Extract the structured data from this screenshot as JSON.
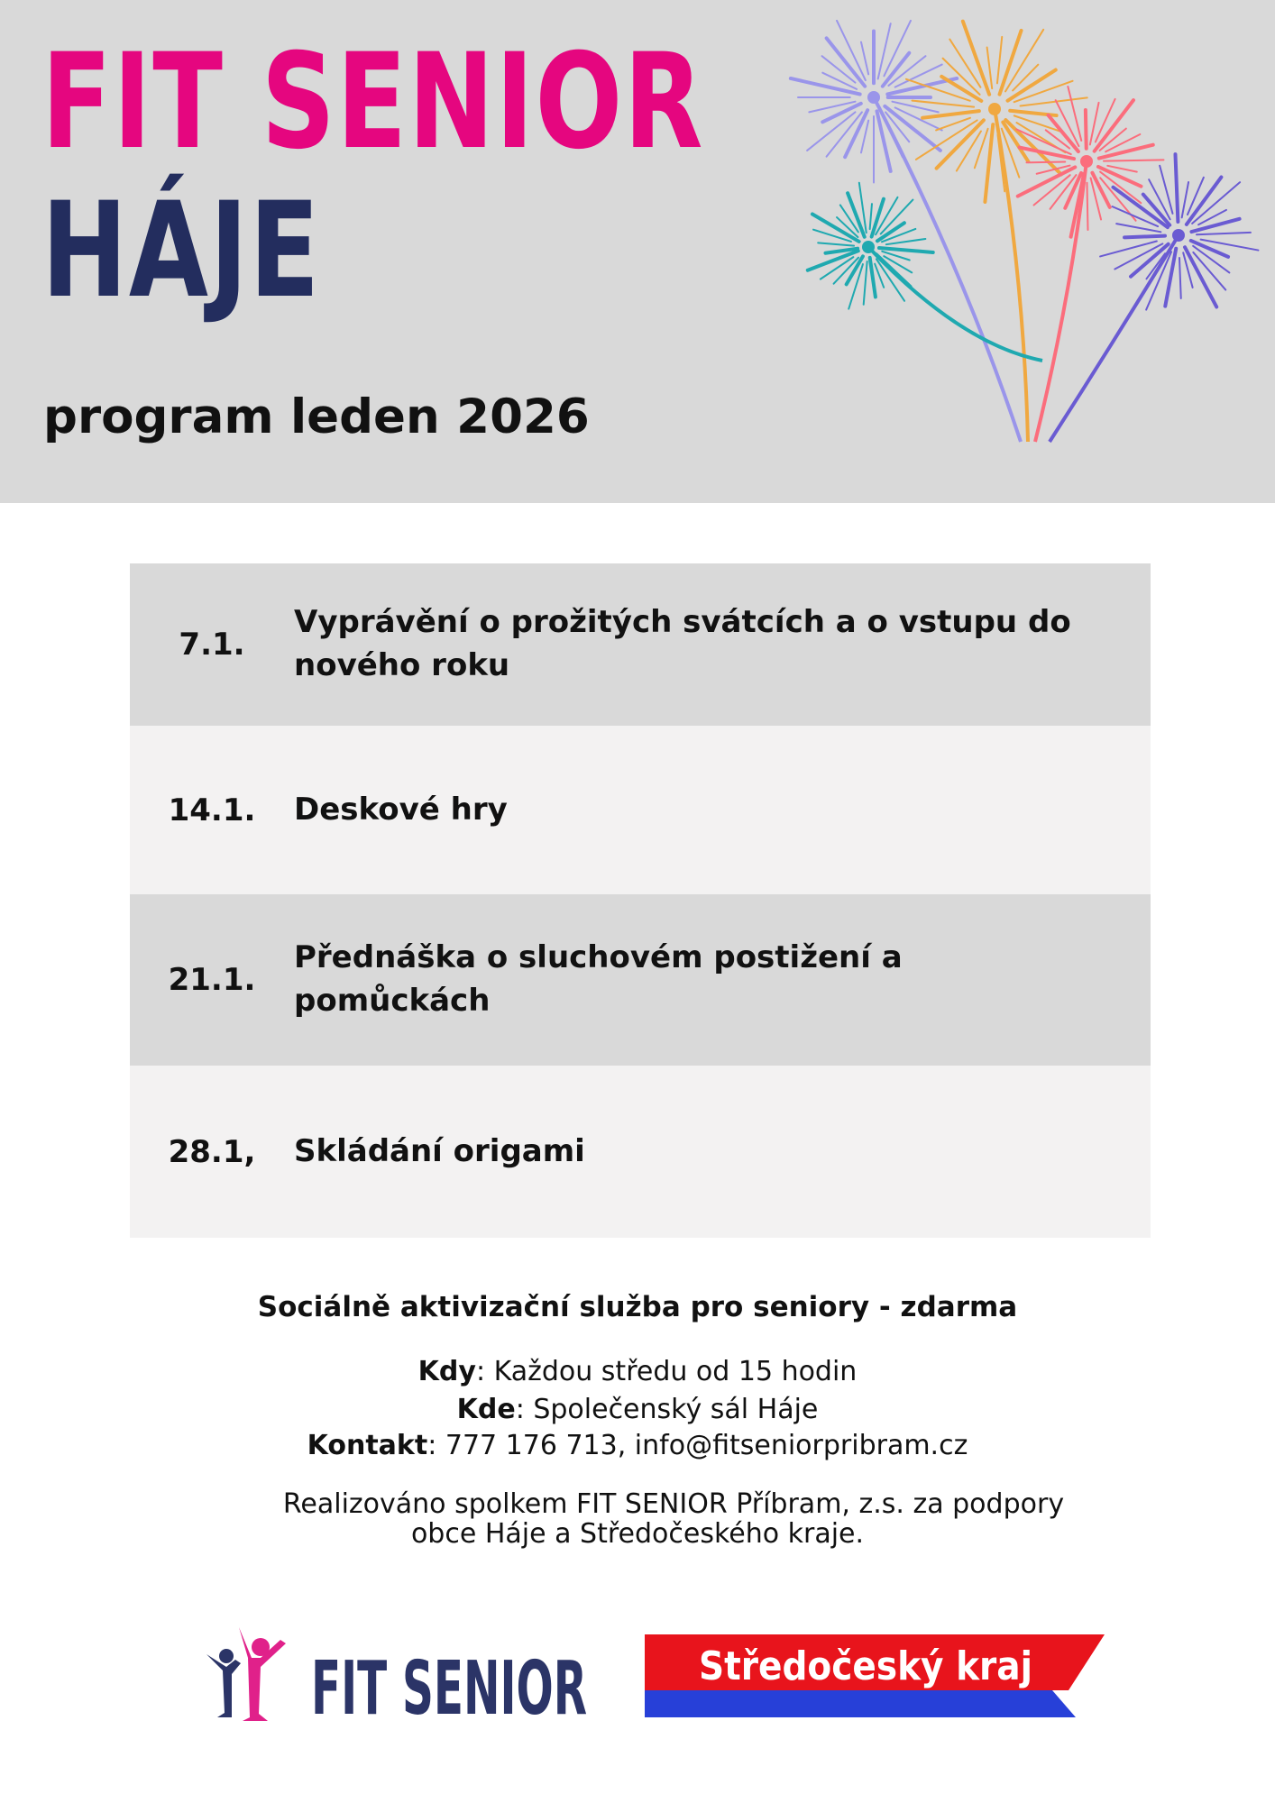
{
  "header": {
    "title_line1": "FIT SENIOR",
    "title_line2": "HÁJE",
    "subtitle": "program leden 2026",
    "fireworks_colors": [
      "#9a95ea",
      "#f0a840",
      "#fb6d7c",
      "#1fa9b0",
      "#6a5bd2"
    ]
  },
  "program": [
    {
      "date": "7.1.",
      "activity": "Vyprávění o prožitých svátcích a o vstupu do nového roku"
    },
    {
      "date": "14.1.",
      "activity": "Deskové hry"
    },
    {
      "date": "21.1.",
      "activity": "Přednáška o sluchovém postižení a pomůckách"
    },
    {
      "date": "28.1,",
      "activity": "Skládání origami"
    }
  ],
  "footer": {
    "heading": "Sociálně aktivizační služba pro seniory - zdarma",
    "when_label": "Kdy",
    "when_value": ": Každou středu od 15 hodin",
    "where_label": "Kde",
    "where_value": ": Společenský sál Háje",
    "contact_label": "Kontakt",
    "contact_value": ": 777 176 713, info@fitseniorpribram.cz",
    "credit_line1": "Realizováno spolkem FIT SENIOR Příbram, z.s. za podpory",
    "credit_line2": "obce Háje a Středočeského kraje."
  },
  "logos": {
    "fit_senior": "FIT SENIOR",
    "kraj": "Středočeský kraj",
    "colors": {
      "navy": "#2b3467",
      "pink": "#e0218a",
      "red": "#e8141c",
      "blue": "#2740d8"
    }
  }
}
